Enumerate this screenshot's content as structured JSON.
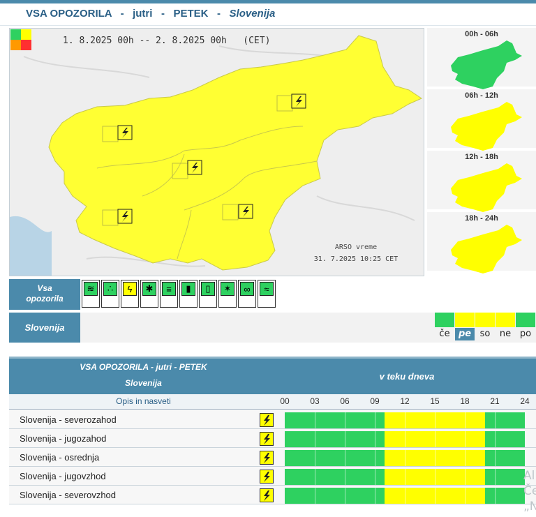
{
  "title": {
    "prefix": "VSA OPOZORILA",
    "sep1": "-",
    "day_rel": "jutri",
    "sep2": "-",
    "weekday": "PETEK",
    "sep3": "-",
    "region": "Slovenija"
  },
  "map": {
    "date_range": "1. 8.2025 00h -- 2. 8.2025 00h   (CET)",
    "source": "ARSO vreme",
    "issued": "31. 7.2025  10:25 CET",
    "warning_icon": "lightning-icon",
    "fill_color": "#ffff33"
  },
  "periods": [
    {
      "label": "00h - 06h",
      "color": "#2ed160"
    },
    {
      "label": "06h - 12h",
      "color": "#ffff00"
    },
    {
      "label": "12h - 18h",
      "color": "#ffff00"
    },
    {
      "label": "18h - 24h",
      "color": "#ffff00"
    }
  ],
  "toolbar": {
    "all_label_1": "Vsa",
    "all_label_2": "opozorila",
    "icons": [
      "wind-icon",
      "rain-icon",
      "lightning-icon",
      "snow-icon",
      "fog-icon",
      "heat-icon",
      "cold-icon",
      "forest-fire-icon",
      "coastal-wave-icon",
      "flood-icon"
    ]
  },
  "region_bar": {
    "label": "Slovenija",
    "days": [
      {
        "label": "če",
        "color": "#2ed160",
        "active": false
      },
      {
        "label": "pe",
        "color": "#ffff00",
        "active": true
      },
      {
        "label": "so",
        "color": "#ffff00",
        "active": false
      },
      {
        "label": "ne",
        "color": "#ffff00",
        "active": false
      },
      {
        "label": "po",
        "color": "#2ed160",
        "active": false
      }
    ]
  },
  "table": {
    "head_title": "VSA OPOZORILA - jutri - PETEK",
    "head_region": "Slovenija",
    "head_timeline": "v teku dneva",
    "col_desc": "Opis in nasveti",
    "hours": [
      "00",
      "03",
      "06",
      "09",
      "12",
      "15",
      "18",
      "21",
      "24"
    ],
    "rows": [
      {
        "label": "Slovenija - severozahod",
        "segments": [
          {
            "from": 0,
            "to": 10,
            "level": "green"
          },
          {
            "from": 10,
            "to": 20,
            "level": "yellow"
          },
          {
            "from": 20,
            "to": 24,
            "level": "green"
          }
        ]
      },
      {
        "label": "Slovenija - jugozahod",
        "segments": [
          {
            "from": 0,
            "to": 10,
            "level": "green"
          },
          {
            "from": 10,
            "to": 20,
            "level": "yellow"
          },
          {
            "from": 20,
            "to": 24,
            "level": "green"
          }
        ]
      },
      {
        "label": "Slovenija - osrednja",
        "segments": [
          {
            "from": 0,
            "to": 10,
            "level": "green"
          },
          {
            "from": 10,
            "to": 20,
            "level": "yellow"
          },
          {
            "from": 20,
            "to": 24,
            "level": "green"
          }
        ]
      },
      {
        "label": "Slovenija - jugovzhod",
        "segments": [
          {
            "from": 0,
            "to": 10,
            "level": "green"
          },
          {
            "from": 10,
            "to": 20,
            "level": "yellow"
          },
          {
            "from": 20,
            "to": 24,
            "level": "green"
          }
        ]
      },
      {
        "label": "Slovenija - severovzhod",
        "segments": [
          {
            "from": 0,
            "to": 10,
            "level": "green"
          },
          {
            "from": 10,
            "to": 20,
            "level": "yellow"
          },
          {
            "from": 20,
            "to": 24,
            "level": "green"
          }
        ]
      }
    ]
  },
  "colors": {
    "green": "#2ed160",
    "yellow": "#ffff00",
    "accent": "#4b8aab"
  },
  "ghost_text": [
    "Al",
    "Če",
    "„N"
  ]
}
